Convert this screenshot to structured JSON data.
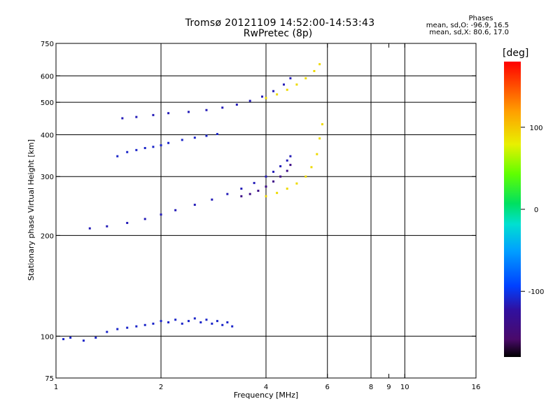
{
  "header": {
    "title": "Tromsø 20121109 14:52:00-14:53:43",
    "subtitle": "RwPretec (8p)"
  },
  "phases_box": {
    "heading": "Phases",
    "line_o": "mean, sd,O: -96.9, 16.5",
    "line_x": "mean, sd,X:  80.6, 17.0"
  },
  "colorbar": {
    "unit_label": "[deg]",
    "tick_labels": [
      "100",
      "0",
      "-100"
    ],
    "tick_values": [
      100,
      0,
      -100
    ],
    "range": [
      -180,
      180
    ]
  },
  "chart_data": {
    "type": "scatter",
    "title": "Tromsø 20121109 14:52:00-14:53:43",
    "subtitle": "RwPretec (8p)",
    "xlabel": "Frequency [MHz]",
    "ylabel": "Stationary phase Virtual Height [km]",
    "x_scale": "log",
    "y_scale": "log",
    "xlim": [
      1,
      16
    ],
    "ylim": [
      75,
      750
    ],
    "x_ticks": [
      1,
      2,
      4,
      6,
      8,
      9,
      10,
      16
    ],
    "x_tick_labels": [
      "1",
      "2",
      "4",
      "6",
      "8",
      "9",
      "10",
      "16"
    ],
    "x_gridlines": [
      2,
      4,
      6,
      8,
      10
    ],
    "y_ticks": [
      75,
      100,
      200,
      300,
      400,
      500,
      600,
      750
    ],
    "y_tick_labels": [
      "75",
      "100",
      "200",
      "300",
      "400",
      "500",
      "600",
      "750"
    ],
    "y_gridlines": [
      100,
      200,
      300,
      400,
      500,
      600
    ],
    "grid": true,
    "color_encoding": "phase [deg]",
    "series": [
      {
        "name": "",
        "phase": -110,
        "x": [
          1.05,
          1.1,
          1.2,
          1.3,
          1.4,
          1.5,
          1.6,
          1.7,
          1.8,
          1.9,
          2.0,
          2.1,
          2.2,
          2.3,
          2.4,
          2.5,
          2.6,
          2.7,
          2.8,
          2.9,
          3.0,
          3.1,
          3.2
        ],
        "y": [
          98,
          99,
          97,
          99,
          103,
          105,
          106,
          107,
          108,
          109,
          111,
          110,
          112,
          109,
          111,
          113,
          110,
          112,
          109,
          111,
          108,
          110,
          107
        ]
      },
      {
        "name": "",
        "phase": -115,
        "x": [
          1.25,
          1.4,
          1.6,
          1.8,
          2.0,
          2.2,
          2.5,
          2.8,
          3.1,
          3.4,
          3.7,
          4.0,
          4.2,
          4.4,
          4.6,
          4.7
        ],
        "y": [
          210,
          213,
          218,
          224,
          231,
          238,
          247,
          256,
          266,
          276,
          287,
          300,
          310,
          322,
          335,
          345
        ]
      },
      {
        "name": "",
        "phase": -140,
        "x": [
          3.4,
          3.6,
          3.8,
          4.0,
          4.2,
          4.4,
          4.6,
          4.7
        ],
        "y": [
          262,
          266,
          272,
          280,
          290,
          300,
          312,
          325
        ]
      },
      {
        "name": "",
        "phase": 90,
        "x": [
          4.0,
          4.3,
          4.6,
          4.9,
          5.2,
          5.4,
          5.6,
          5.7,
          5.8
        ],
        "y": [
          262,
          268,
          276,
          286,
          300,
          320,
          350,
          390,
          430
        ]
      },
      {
        "name": "",
        "phase": -110,
        "x": [
          1.5,
          1.6,
          1.7,
          1.8,
          1.9,
          2.0,
          2.1,
          2.3,
          2.5,
          2.7,
          2.9
        ],
        "y": [
          345,
          355,
          360,
          365,
          368,
          372,
          378,
          386,
          392,
          397,
          402
        ]
      },
      {
        "name": "",
        "phase": -115,
        "x": [
          1.55,
          1.7,
          1.9,
          2.1,
          2.4,
          2.7,
          3.0,
          3.3,
          3.6,
          3.9,
          4.2,
          4.5,
          4.7
        ],
        "y": [
          448,
          452,
          458,
          464,
          468,
          474,
          482,
          492,
          505,
          520,
          540,
          565,
          590
        ]
      },
      {
        "name": "",
        "phase": 90,
        "x": [
          4.0,
          4.3,
          4.6,
          4.9,
          5.2,
          5.5,
          5.7
        ],
        "y": [
          515,
          528,
          545,
          565,
          590,
          620,
          650
        ]
      }
    ]
  }
}
